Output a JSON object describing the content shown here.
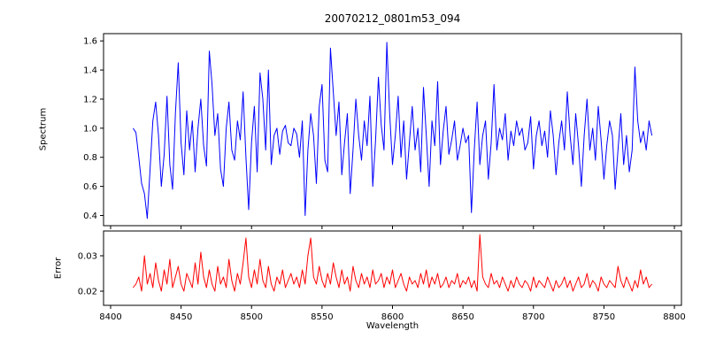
{
  "chart_data": {
    "type": "line",
    "title": "20070212_0801m53_094",
    "xlabel": "Wavelength",
    "xlim": [
      8395,
      8805
    ],
    "xticks": [
      8400,
      8450,
      8500,
      8550,
      8600,
      8650,
      8700,
      8750,
      8800
    ],
    "xtick_labels": [
      "8400",
      "8450",
      "8500",
      "8550",
      "8600",
      "8650",
      "8700",
      "8750",
      "8800"
    ],
    "grid": false,
    "legend": "none",
    "panels": [
      {
        "name": "spectrum-line",
        "ylabel": "Spectrum",
        "color": "#0000ff",
        "ylim": [
          0.33,
          1.65
        ],
        "yticks": [
          0.4,
          0.6,
          0.8,
          1.0,
          1.2,
          1.4,
          1.6
        ],
        "ytick_labels": [
          "0.4",
          "0.6",
          "0.8",
          "1.0",
          "1.2",
          "1.4",
          "1.6"
        ],
        "x_start": 8416,
        "x_step": 2,
        "y": [
          1.0,
          0.97,
          0.8,
          0.62,
          0.55,
          0.38,
          0.72,
          1.05,
          1.18,
          0.95,
          0.6,
          0.82,
          1.22,
          0.75,
          0.58,
          1.1,
          1.45,
          0.9,
          0.68,
          1.12,
          0.85,
          1.05,
          0.7,
          1.0,
          1.2,
          0.88,
          0.74,
          1.53,
          1.3,
          0.95,
          1.1,
          0.72,
          0.6,
          1.0,
          1.18,
          0.85,
          0.78,
          1.05,
          0.92,
          1.25,
          0.8,
          0.44,
          0.9,
          1.15,
          0.7,
          1.38,
          1.2,
          0.85,
          1.4,
          0.75,
          0.95,
          1.0,
          0.82,
          0.98,
          1.02,
          0.9,
          0.88,
          1.0,
          0.96,
          0.8,
          1.05,
          0.4,
          0.85,
          1.1,
          0.95,
          0.62,
          1.15,
          1.3,
          0.78,
          0.7,
          1.55,
          1.25,
          0.95,
          1.18,
          0.68,
          0.9,
          1.1,
          0.55,
          0.85,
          1.2,
          0.95,
          0.78,
          1.05,
          0.88,
          1.22,
          0.6,
          0.92,
          1.35,
          1.02,
          0.85,
          1.59,
          1.1,
          0.75,
          0.95,
          1.22,
          0.8,
          1.05,
          0.65,
          0.9,
          1.15,
          0.85,
          1.0,
          0.7,
          1.28,
          0.95,
          0.6,
          1.05,
          0.88,
          1.32,
          0.75,
          0.98,
          1.15,
          0.82,
          0.92,
          1.05,
          0.78,
          0.88,
          1.0,
          0.9,
          0.95,
          0.42,
          0.85,
          1.18,
          0.75,
          0.95,
          1.05,
          0.65,
          0.9,
          1.3,
          0.85,
          1.0,
          0.92,
          1.1,
          0.78,
          0.98,
          0.88,
          1.05,
          0.95,
          1.0,
          0.85,
          0.9,
          1.08,
          0.72,
          0.95,
          1.05,
          0.88,
          0.98,
          0.8,
          1.12,
          0.95,
          0.68,
          0.9,
          1.05,
          0.85,
          1.25,
          0.95,
          0.75,
          1.1,
          0.88,
          0.6,
          0.95,
          1.2,
          0.85,
          1.0,
          0.78,
          1.15,
          0.92,
          0.65,
          0.88,
          1.05,
          0.95,
          0.58,
          0.85,
          1.1,
          0.75,
          0.95,
          0.7,
          0.85,
          1.42,
          1.05,
          0.9,
          0.98,
          0.85,
          1.05,
          0.95
        ]
      },
      {
        "name": "error-line",
        "ylabel": "Error",
        "color": "#ff0000",
        "ylim": [
          0.016,
          0.037
        ],
        "yticks": [
          0.02,
          0.03
        ],
        "ytick_labels": [
          "0.02",
          "0.03"
        ],
        "x_start": 8416,
        "x_step": 2,
        "y": [
          0.021,
          0.022,
          0.024,
          0.02,
          0.03,
          0.022,
          0.025,
          0.021,
          0.028,
          0.023,
          0.02,
          0.026,
          0.022,
          0.029,
          0.021,
          0.024,
          0.027,
          0.022,
          0.02,
          0.025,
          0.023,
          0.021,
          0.028,
          0.022,
          0.031,
          0.024,
          0.021,
          0.026,
          0.022,
          0.02,
          0.027,
          0.022,
          0.024,
          0.021,
          0.029,
          0.023,
          0.02,
          0.025,
          0.022,
          0.028,
          0.035,
          0.024,
          0.021,
          0.026,
          0.022,
          0.029,
          0.023,
          0.021,
          0.027,
          0.022,
          0.02,
          0.024,
          0.022,
          0.026,
          0.021,
          0.023,
          0.025,
          0.022,
          0.024,
          0.021,
          0.026,
          0.022,
          0.03,
          0.035,
          0.024,
          0.022,
          0.027,
          0.023,
          0.021,
          0.025,
          0.022,
          0.028,
          0.024,
          0.021,
          0.026,
          0.022,
          0.024,
          0.02,
          0.027,
          0.023,
          0.021,
          0.025,
          0.022,
          0.024,
          0.021,
          0.026,
          0.022,
          0.023,
          0.025,
          0.021,
          0.024,
          0.022,
          0.026,
          0.021,
          0.023,
          0.025,
          0.022,
          0.02,
          0.024,
          0.022,
          0.023,
          0.021,
          0.025,
          0.022,
          0.026,
          0.021,
          0.024,
          0.022,
          0.025,
          0.021,
          0.022,
          0.024,
          0.021,
          0.023,
          0.022,
          0.025,
          0.021,
          0.023,
          0.022,
          0.024,
          0.021,
          0.023,
          0.02,
          0.036,
          0.024,
          0.022,
          0.021,
          0.025,
          0.022,
          0.023,
          0.021,
          0.024,
          0.022,
          0.02,
          0.023,
          0.021,
          0.024,
          0.022,
          0.021,
          0.023,
          0.022,
          0.02,
          0.024,
          0.021,
          0.023,
          0.022,
          0.021,
          0.024,
          0.022,
          0.02,
          0.023,
          0.021,
          0.022,
          0.024,
          0.021,
          0.023,
          0.02,
          0.022,
          0.024,
          0.021,
          0.022,
          0.025,
          0.021,
          0.023,
          0.022,
          0.02,
          0.024,
          0.022,
          0.021,
          0.023,
          0.022,
          0.021,
          0.027,
          0.023,
          0.021,
          0.024,
          0.022,
          0.02,
          0.023,
          0.021,
          0.026,
          0.022,
          0.024,
          0.021,
          0.022
        ]
      }
    ]
  }
}
